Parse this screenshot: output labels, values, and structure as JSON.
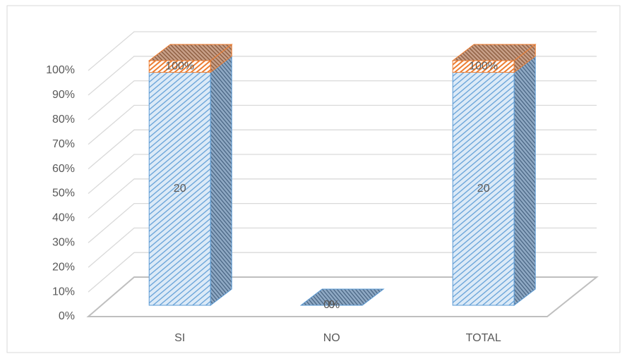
{
  "chart_data": {
    "type": "bar",
    "stacked": "percent",
    "categories": [
      "SI",
      "NO",
      "TOTAL"
    ],
    "series": [
      {
        "color": "#5b9bd5",
        "values": [
          20,
          0,
          20
        ]
      },
      {
        "color": "#ed7d31",
        "values": [
          1,
          0,
          1
        ],
        "value_labels": [
          "100%",
          "0%",
          "100%"
        ]
      }
    ],
    "ylim": [
      0,
      100
    ],
    "yticks": [
      {
        "value": 0,
        "label": "0%"
      },
      {
        "value": 10,
        "label": "10%"
      },
      {
        "value": 20,
        "label": "20%"
      },
      {
        "value": 30,
        "label": "30%"
      },
      {
        "value": 40,
        "label": "40%"
      },
      {
        "value": 50,
        "label": "50%"
      },
      {
        "value": 60,
        "label": "60%"
      },
      {
        "value": 70,
        "label": "70%"
      },
      {
        "value": 80,
        "label": "80%"
      },
      {
        "value": 90,
        "label": "90%"
      },
      {
        "value": 100,
        "label": "100%"
      }
    ],
    "grid": true
  }
}
